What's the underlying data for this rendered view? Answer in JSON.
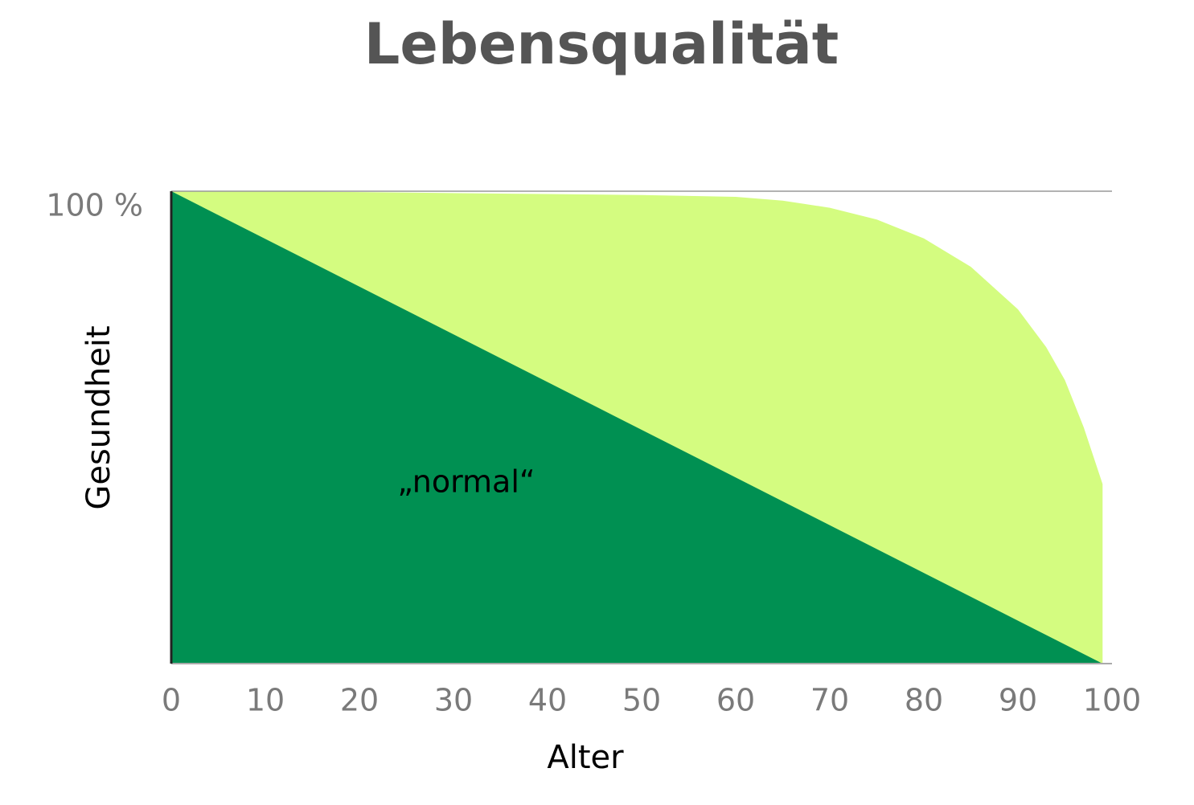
{
  "chart_data": {
    "type": "area",
    "title": "Lebensqualität",
    "x_label": "Alter",
    "y_label": "Gesundheit",
    "xlim": [
      0,
      100
    ],
    "xticks": [
      0,
      10,
      20,
      30,
      40,
      50,
      60,
      70,
      80,
      90,
      100
    ],
    "ylim": [
      0,
      100
    ],
    "yticks": [
      {
        "value": 100,
        "label": "100 %"
      }
    ],
    "grid": true,
    "series": [
      {
        "color": "#d4fc80",
        "x": [
          0,
          10,
          20,
          30,
          40,
          50,
          60,
          65,
          70,
          75,
          80,
          85,
          90,
          93,
          95,
          97,
          98,
          99,
          99
        ],
        "values": [
          100,
          100,
          99.8,
          99.6,
          99.4,
          99.2,
          98.8,
          98,
          96.5,
          94,
          90,
          84,
          75,
          67,
          60,
          50,
          44,
          38,
          0
        ]
      },
      {
        "name": "„normal“",
        "color": "#009052",
        "x": [
          0,
          99
        ],
        "values": [
          100,
          0
        ]
      }
    ]
  }
}
